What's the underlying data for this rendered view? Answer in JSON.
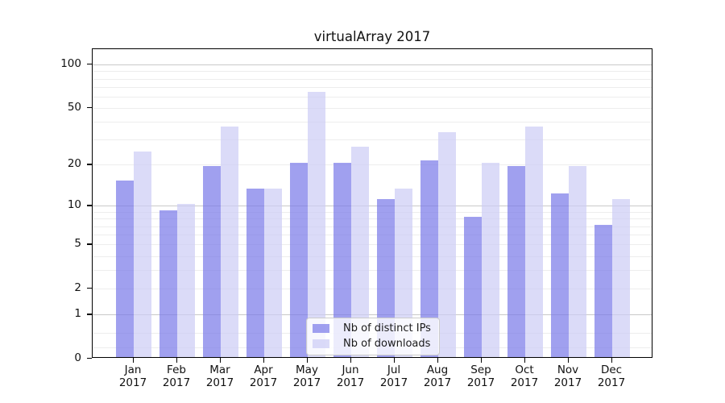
{
  "chart_data": {
    "type": "bar",
    "title": "virtualArray 2017",
    "year": "2017",
    "categories": [
      "Jan",
      "Feb",
      "Mar",
      "Apr",
      "May",
      "Jun",
      "Jul",
      "Aug",
      "Sep",
      "Oct",
      "Nov",
      "Dec"
    ],
    "series": [
      {
        "name": "Nb of distinct IPs",
        "color": "rgba(124,124,233,0.72)",
        "values": [
          15,
          9,
          19,
          13,
          20,
          20,
          11,
          21,
          8,
          19,
          12,
          7
        ]
      },
      {
        "name": "Nb of downloads",
        "color": "rgba(205,205,245,0.72)",
        "values": [
          24,
          10,
          36,
          13,
          63,
          26,
          13,
          33,
          20,
          36,
          19,
          11
        ]
      }
    ],
    "yscale": "log1p",
    "ylim": [
      0,
      127
    ],
    "yticks": [
      0,
      1,
      2,
      5,
      10,
      20,
      50,
      100
    ],
    "major_gridlines": [
      1,
      10,
      100
    ],
    "minor_gridlines": [
      0.2,
      0.5,
      2,
      3,
      4,
      5,
      6,
      7,
      8,
      9,
      20,
      30,
      40,
      50,
      60,
      70,
      80,
      90
    ],
    "grid": true,
    "legend_position": "lower center",
    "colors": {
      "axis": "#000000",
      "tick_label": "#111111",
      "grid_major": "#c9c9c9",
      "grid_minor": "#ededed",
      "legend_border": "#cccccc",
      "background": "#ffffff"
    }
  }
}
